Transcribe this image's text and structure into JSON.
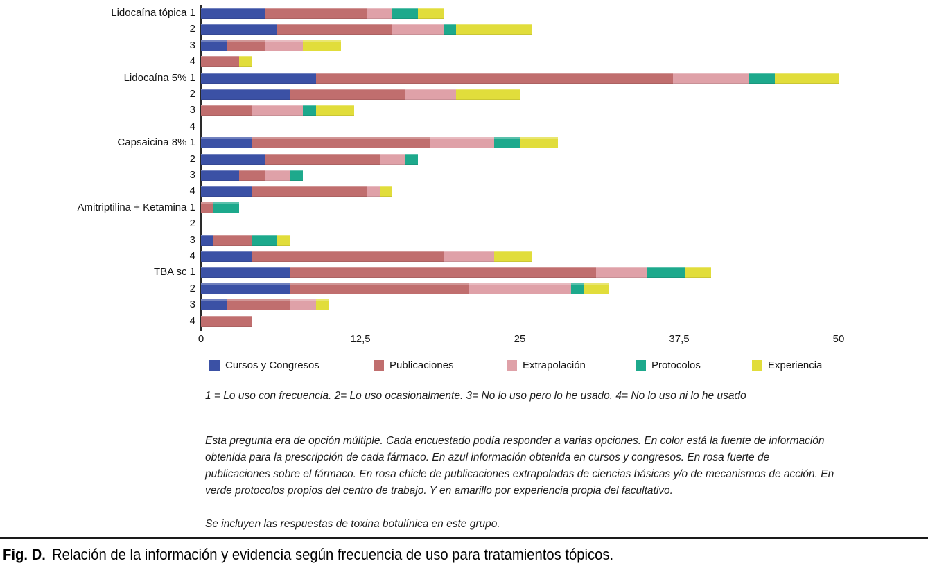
{
  "figure": {
    "caption_prefix": "Fig. D.",
    "caption_text": "Relación de la información y evidencia según frecuencia de uso para tratamientos tópicos."
  },
  "notes": {
    "scale_definition": "1 = Lo uso con frecuencia. 2= Lo uso ocasionalmente. 3= No lo uso pero lo he usado. 4= No lo uso ni lo he usado",
    "description": "Esta pregunta era de opción múltiple. Cada encuestado podía responder a varias opciones. En color está la fuente de información obtenida para la prescripción de cada fármaco. En azul información obtenida en cursos y congresos. En rosa fuerte de publicaciones sobre el fármaco. En rosa chicle de publicaciones extrapoladas de ciencias básicas y/o de mecanismos de acción. En verde protocolos propios del centro de trabajo. Y en amarillo por experiencia propia del facultativo.",
    "inclusion": "Se incluyen las respuestas de toxina botulínica en este grupo."
  },
  "chart_data": {
    "type": "bar",
    "orientation": "horizontal",
    "stacked": true,
    "grid": false,
    "legend_position": "bottom",
    "xlim": [
      0,
      50
    ],
    "x_ticks": [
      {
        "label": "0",
        "value": 0
      },
      {
        "label": "12,5",
        "value": 12.5
      },
      {
        "label": "25",
        "value": 25
      },
      {
        "label": "37,5",
        "value": 37.5
      },
      {
        "label": "50",
        "value": 50
      }
    ],
    "row_groups": [
      "Lidocaína tópica",
      "Lidocaína 5%",
      "Capsaicina 8%",
      "Amitriptilina + Ketamina",
      "TBA sc"
    ],
    "rows": [
      {
        "label": "Lidocaína tópica 1"
      },
      {
        "label": "2"
      },
      {
        "label": "3"
      },
      {
        "label": "4"
      },
      {
        "label": "Lidocaína 5% 1"
      },
      {
        "label": "2"
      },
      {
        "label": "3"
      },
      {
        "label": "4"
      },
      {
        "label": "Capsaicina 8% 1"
      },
      {
        "label": "2"
      },
      {
        "label": "3"
      },
      {
        "label": "4"
      },
      {
        "label": "Amitriptilina + Ketamina 1"
      },
      {
        "label": "2"
      },
      {
        "label": "3"
      },
      {
        "label": "4"
      },
      {
        "label": "TBA sc 1"
      },
      {
        "label": "2"
      },
      {
        "label": "3"
      },
      {
        "label": "4"
      }
    ],
    "series": [
      {
        "name": "Cursos y Congresos",
        "color": "#3B51A5",
        "values": [
          5,
          6,
          2,
          0,
          9,
          7,
          0,
          0,
          4,
          5,
          3,
          4,
          0,
          0,
          1,
          4,
          7,
          7,
          2,
          0
        ]
      },
      {
        "name": "Publicaciones",
        "color": "#C06E6E",
        "values": [
          8,
          9,
          3,
          3,
          28,
          9,
          4,
          0,
          14,
          9,
          2,
          9,
          1,
          0,
          3,
          15,
          24,
          14,
          5,
          4
        ]
      },
      {
        "name": "Extrapolación",
        "color": "#DFA1A8",
        "values": [
          2,
          4,
          3,
          0,
          6,
          4,
          4,
          0,
          5,
          2,
          2,
          1,
          0,
          0,
          0,
          4,
          4,
          8,
          2,
          0
        ]
      },
      {
        "name": "Protocolos",
        "color": "#1DA98C",
        "values": [
          2,
          1,
          0,
          0,
          2,
          0,
          1,
          0,
          2,
          1,
          1,
          0,
          2,
          0,
          2,
          0,
          3,
          1,
          0,
          0
        ]
      },
      {
        "name": "Experiencia",
        "color": "#E1DD3B",
        "values": [
          2,
          6,
          3,
          1,
          5,
          5,
          3,
          0,
          3,
          0,
          0,
          1,
          0,
          0,
          1,
          3,
          2,
          2,
          1,
          0
        ]
      }
    ]
  }
}
